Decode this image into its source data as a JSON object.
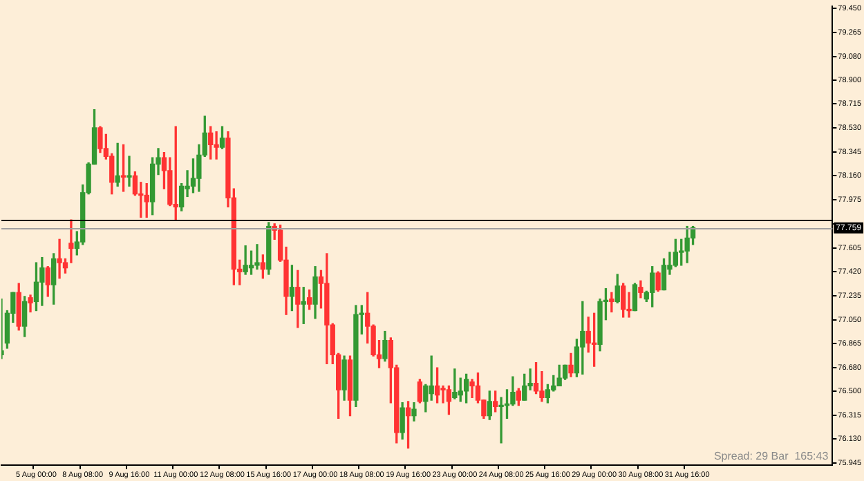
{
  "chart_data": {
    "type": "candlestick",
    "categories": [
      null,
      null,
      null,
      null,
      null,
      null,
      "5 Aug 00:00",
      null,
      null,
      null,
      null,
      null,
      null,
      null,
      "8 Aug 08:00",
      null,
      null,
      null,
      null,
      null,
      null,
      null,
      "9 Aug 16:00",
      null,
      null,
      null,
      null,
      null,
      null,
      null,
      "11 Aug 00:00",
      null,
      null,
      null,
      null,
      null,
      null,
      null,
      "12 Aug 08:00",
      null,
      null,
      null,
      null,
      null,
      null,
      null,
      "15 Aug 16:00",
      null,
      null,
      null,
      null,
      null,
      null,
      null,
      "17 Aug 00:00",
      null,
      null,
      null,
      null,
      null,
      null,
      null,
      "18 Aug 08:00",
      null,
      null,
      null,
      null,
      null,
      null,
      null,
      "19 Aug 16:00",
      null,
      null,
      null,
      null,
      null,
      null,
      null,
      "23 Aug 00:00",
      null,
      null,
      null,
      null,
      null,
      null,
      null,
      "24 Aug 08:00",
      null,
      null,
      null,
      null,
      null,
      null,
      null,
      "25 Aug 16:00",
      null,
      null,
      null,
      null,
      null,
      null,
      null,
      "29 Aug 00:00",
      null,
      null,
      null,
      null,
      null,
      null,
      null,
      "30 Aug 08:00",
      null,
      null,
      null,
      null,
      null,
      null,
      null,
      "31 Aug 16:00",
      null,
      null,
      null,
      null,
      null,
      null,
      null,
      null,
      null,
      null,
      null,
      null,
      null,
      null,
      null,
      null,
      null,
      null,
      null,
      null,
      null,
      null,
      null,
      null,
      null
    ],
    "ohlc": [
      [
        76.78,
        77.21,
        76.75,
        76.81
      ],
      [
        76.87,
        77.12,
        76.83,
        77.1
      ],
      [
        77.1,
        77.26,
        77.03,
        77.26
      ],
      [
        77.26,
        77.33,
        76.97,
        77.0
      ],
      [
        77.0,
        77.23,
        76.92,
        77.19
      ],
      [
        77.22,
        77.24,
        77.11,
        77.18
      ],
      [
        77.19,
        77.49,
        77.12,
        77.34
      ],
      [
        77.34,
        77.53,
        77.16,
        77.45
      ],
      [
        77.45,
        77.46,
        77.23,
        77.32
      ],
      [
        77.32,
        77.56,
        77.17,
        77.52
      ],
      [
        77.52,
        77.67,
        77.37,
        77.49
      ],
      [
        77.49,
        77.52,
        77.41,
        77.45
      ],
      [
        77.64,
        77.82,
        77.49,
        77.6
      ],
      [
        77.6,
        77.73,
        77.55,
        77.65
      ],
      [
        77.65,
        78.09,
        77.63,
        78.03
      ],
      [
        78.03,
        78.26,
        78.02,
        78.25
      ],
      [
        78.25,
        78.67,
        78.25,
        78.53
      ],
      [
        78.53,
        78.54,
        78.34,
        78.37
      ],
      [
        78.37,
        78.48,
        78.29,
        78.31
      ],
      [
        78.31,
        78.33,
        78.02,
        78.11
      ],
      [
        78.11,
        78.41,
        78.08,
        78.16
      ],
      [
        78.16,
        78.4,
        78.04,
        78.15
      ],
      [
        78.15,
        78.31,
        78.08,
        78.16
      ],
      [
        78.16,
        78.19,
        78.01,
        78.02
      ],
      [
        78.02,
        78.11,
        77.84,
        78.01
      ],
      [
        78.01,
        78.1,
        77.84,
        77.96
      ],
      [
        77.96,
        78.3,
        77.86,
        78.25
      ],
      [
        78.25,
        78.37,
        78.17,
        78.3
      ],
      [
        78.3,
        78.34,
        78.06,
        78.2
      ],
      [
        78.2,
        78.3,
        77.93,
        77.94
      ],
      [
        77.94,
        78.54,
        77.82,
        77.92
      ],
      [
        77.92,
        78.1,
        77.89,
        78.08
      ],
      [
        78.06,
        78.2,
        78.0,
        78.08
      ],
      [
        78.08,
        78.29,
        78.03,
        78.14
      ],
      [
        78.14,
        78.4,
        78.04,
        78.32
      ],
      [
        78.32,
        78.62,
        78.31,
        78.49
      ],
      [
        78.49,
        78.54,
        78.29,
        78.4
      ],
      [
        78.4,
        78.5,
        78.29,
        78.38
      ],
      [
        78.38,
        78.54,
        78.37,
        78.45
      ],
      [
        78.45,
        78.5,
        77.92,
        77.99
      ],
      [
        77.99,
        78.06,
        77.32,
        77.44
      ],
      [
        77.44,
        77.51,
        77.32,
        77.42
      ],
      [
        77.42,
        77.62,
        77.4,
        77.47
      ],
      [
        77.45,
        77.58,
        77.4,
        77.47
      ],
      [
        77.47,
        77.63,
        77.44,
        77.49
      ],
      [
        77.49,
        77.55,
        77.37,
        77.44
      ],
      [
        77.44,
        77.8,
        77.4,
        77.77
      ],
      [
        77.77,
        77.79,
        77.67,
        77.74
      ],
      [
        77.74,
        77.78,
        77.5,
        77.51
      ],
      [
        77.51,
        77.61,
        77.09,
        77.23
      ],
      [
        77.23,
        77.47,
        77.12,
        77.3
      ],
      [
        77.3,
        77.43,
        76.99,
        77.17
      ],
      [
        77.17,
        77.3,
        77.02,
        77.19
      ],
      [
        77.22,
        77.28,
        77.13,
        77.17
      ],
      [
        77.17,
        77.46,
        77.06,
        77.38
      ],
      [
        77.38,
        77.43,
        77.14,
        77.33
      ],
      [
        77.33,
        77.56,
        76.71,
        77.01
      ],
      [
        77.01,
        77.02,
        76.71,
        76.78
      ],
      [
        76.78,
        76.79,
        76.29,
        76.51
      ],
      [
        76.51,
        76.77,
        76.43,
        76.74
      ],
      [
        76.74,
        76.77,
        76.31,
        76.43
      ],
      [
        76.43,
        77.16,
        76.38,
        77.09
      ],
      [
        77.09,
        77.16,
        76.94,
        77.1
      ],
      [
        77.1,
        77.26,
        76.87,
        77.0
      ],
      [
        77.0,
        77.01,
        76.77,
        76.78
      ],
      [
        76.78,
        76.89,
        76.68,
        76.75
      ],
      [
        76.75,
        76.96,
        76.73,
        76.89
      ],
      [
        76.89,
        76.91,
        76.41,
        76.68
      ],
      [
        76.68,
        76.7,
        76.1,
        76.18
      ],
      [
        76.18,
        76.41,
        76.13,
        76.37
      ],
      [
        76.37,
        76.42,
        76.06,
        76.31
      ],
      [
        76.31,
        76.41,
        76.27,
        76.36
      ],
      [
        76.57,
        76.59,
        76.41,
        76.42
      ],
      [
        76.42,
        76.55,
        76.34,
        76.54
      ],
      [
        76.48,
        76.77,
        76.43,
        76.54
      ],
      [
        76.54,
        76.68,
        76.41,
        76.47
      ],
      [
        76.52,
        76.54,
        76.41,
        76.51
      ],
      [
        76.51,
        76.54,
        76.32,
        76.42
      ],
      [
        76.45,
        76.67,
        76.44,
        76.49
      ],
      [
        76.47,
        76.6,
        76.42,
        76.5
      ],
      [
        76.5,
        76.63,
        76.41,
        76.59
      ],
      [
        76.57,
        76.59,
        76.45,
        76.54
      ],
      [
        76.54,
        76.64,
        76.41,
        76.43
      ],
      [
        76.43,
        76.43,
        76.29,
        76.31
      ],
      [
        76.31,
        76.5,
        76.28,
        76.42
      ],
      [
        76.42,
        76.5,
        76.34,
        76.38
      ],
      [
        76.38,
        76.45,
        76.1,
        76.39
      ],
      [
        76.39,
        76.51,
        76.29,
        76.4
      ],
      [
        76.4,
        76.61,
        76.39,
        76.49
      ],
      [
        76.5,
        76.52,
        76.39,
        76.43
      ],
      [
        76.43,
        76.63,
        76.43,
        76.54
      ],
      [
        76.54,
        76.67,
        76.51,
        76.56
      ],
      [
        76.56,
        76.72,
        76.48,
        76.5
      ],
      [
        76.5,
        76.65,
        76.42,
        76.45
      ],
      [
        76.45,
        76.55,
        76.41,
        76.51
      ],
      [
        76.51,
        76.62,
        76.5,
        76.54
      ],
      [
        76.54,
        76.7,
        76.54,
        76.6
      ],
      [
        76.6,
        76.7,
        76.59,
        76.7
      ],
      [
        76.7,
        76.79,
        76.61,
        76.64
      ],
      [
        76.64,
        76.9,
        76.61,
        76.84
      ],
      [
        76.84,
        77.19,
        76.63,
        76.96
      ],
      [
        76.96,
        77.07,
        76.8,
        76.87
      ],
      [
        76.87,
        77.1,
        76.69,
        76.86
      ],
      [
        76.86,
        77.21,
        76.81,
        77.19
      ],
      [
        77.19,
        77.29,
        77.05,
        77.2
      ],
      [
        77.21,
        77.26,
        77.11,
        77.19
      ],
      [
        77.19,
        77.4,
        77.18,
        77.31
      ],
      [
        77.31,
        77.33,
        77.07,
        77.13
      ],
      [
        77.13,
        77.26,
        77.07,
        77.12
      ],
      [
        77.12,
        77.33,
        77.12,
        77.32
      ],
      [
        77.3,
        77.35,
        77.22,
        77.26
      ],
      [
        77.21,
        77.27,
        77.19,
        77.26
      ],
      [
        77.26,
        77.46,
        77.15,
        77.41
      ],
      [
        77.41,
        77.42,
        77.27,
        77.28
      ],
      [
        77.28,
        77.52,
        77.28,
        77.47
      ],
      [
        77.44,
        77.57,
        77.4,
        77.47
      ],
      [
        77.47,
        77.67,
        77.46,
        77.57
      ],
      [
        77.57,
        77.67,
        77.47,
        77.58
      ],
      [
        77.58,
        77.77,
        77.49,
        77.68
      ],
      [
        77.68,
        77.77,
        77.63,
        77.76
      ],
      null,
      null,
      null,
      null,
      null,
      null,
      null,
      null,
      null,
      null,
      null,
      null,
      null,
      null,
      null,
      null,
      null,
      null,
      null,
      null,
      null,
      null,
      null,
      null
    ],
    "colors": [
      "#339933",
      "#339933",
      "#339933",
      "#ff3333",
      "#339933",
      "#ff3333",
      "#339933",
      "#339933",
      "#ff3333",
      "#339933",
      "#ff3333",
      "#ff3333",
      "#ff3333",
      "#339933",
      "#339933",
      "#339933",
      "#339933",
      "#ff3333",
      "#ff3333",
      "#ff3333",
      "#339933",
      "#ff3333",
      "#339933",
      "#ff3333",
      "#ff3333",
      "#ff3333",
      "#339933",
      "#339933",
      "#ff3333",
      "#ff3333",
      "#ff3333",
      "#339933",
      "#339933",
      "#339933",
      "#339933",
      "#339933",
      "#ff3333",
      "#ff3333",
      "#339933",
      "#ff3333",
      "#ff3333",
      "#ff3333",
      "#339933",
      "#339933",
      "#339933",
      "#ff3333",
      "#339933",
      "#ff3333",
      "#ff3333",
      "#ff3333",
      "#339933",
      "#ff3333",
      "#339933",
      "#ff3333",
      "#339933",
      "#ff3333",
      "#ff3333",
      "#ff3333",
      "#ff3333",
      "#339933",
      "#ff3333",
      "#339933",
      "#339933",
      "#ff3333",
      "#ff3333",
      "#ff3333",
      "#339933",
      "#ff3333",
      "#ff3333",
      "#339933",
      "#ff3333",
      "#339933",
      "#ff3333",
      "#339933",
      "#339933",
      "#ff3333",
      "#ff3333",
      "#ff3333",
      "#339933",
      "#339933",
      "#339933",
      "#ff3333",
      "#ff3333",
      "#ff3333",
      "#339933",
      "#ff3333",
      "#339933",
      "#339933",
      "#339933",
      "#ff3333",
      "#339933",
      "#339933",
      "#ff3333",
      "#ff3333",
      "#339933",
      "#339933",
      "#339933",
      "#339933",
      "#ff3333",
      "#339933",
      "#339933",
      "#ff3333",
      "#ff3333",
      "#339933",
      "#339933",
      "#ff3333",
      "#339933",
      "#ff3333",
      "#ff3333",
      "#339933",
      "#ff3333",
      "#339933",
      "#339933",
      "#ff3333",
      "#339933",
      "#339933",
      "#339933",
      "#339933",
      "#339933",
      "#339933",
      null,
      null,
      null,
      null,
      null,
      null,
      null,
      null,
      null,
      null,
      null,
      null,
      null,
      null,
      null,
      null,
      null,
      null,
      null,
      null,
      null,
      null,
      null,
      null
    ],
    "ylim": [
      75.93,
      79.47
    ],
    "yticks": [
      {
        "value": 79.45,
        "label": "79.450"
      },
      {
        "value": 79.265,
        "label": "79.265"
      },
      {
        "value": 79.08,
        "label": "79.080"
      },
      {
        "value": 78.9,
        "label": "78.900"
      },
      {
        "value": 78.715,
        "label": "78.715"
      },
      {
        "value": 78.53,
        "label": "78.530"
      },
      {
        "value": 78.345,
        "label": "78.345"
      },
      {
        "value": 78.16,
        "label": "78.160"
      },
      {
        "value": 77.975,
        "label": "77.975"
      },
      {
        "value": 77.79,
        "label": null
      },
      {
        "value": 77.605,
        "label": "77.605"
      },
      {
        "value": 77.42,
        "label": "77.420"
      },
      {
        "value": 77.235,
        "label": "77.235"
      },
      {
        "value": 77.05,
        "label": "77.050"
      },
      {
        "value": 76.865,
        "label": "76.865"
      },
      {
        "value": 76.68,
        "label": "76.680"
      },
      {
        "value": 76.5,
        "label": "76.500"
      },
      {
        "value": 76.315,
        "label": "76.315"
      },
      {
        "value": 76.13,
        "label": "76.130"
      },
      {
        "value": 75.945,
        "label": "75.945"
      }
    ],
    "ref_lines": [
      {
        "axis": "y",
        "value": 77.825,
        "color": "#000000"
      },
      {
        "axis": "y",
        "value": 77.759,
        "label": "77.759",
        "color": "#a0a0a0"
      }
    ],
    "annotations": [
      "Spread: 29 Bar  165:43"
    ],
    "grid": false,
    "legend": false
  }
}
